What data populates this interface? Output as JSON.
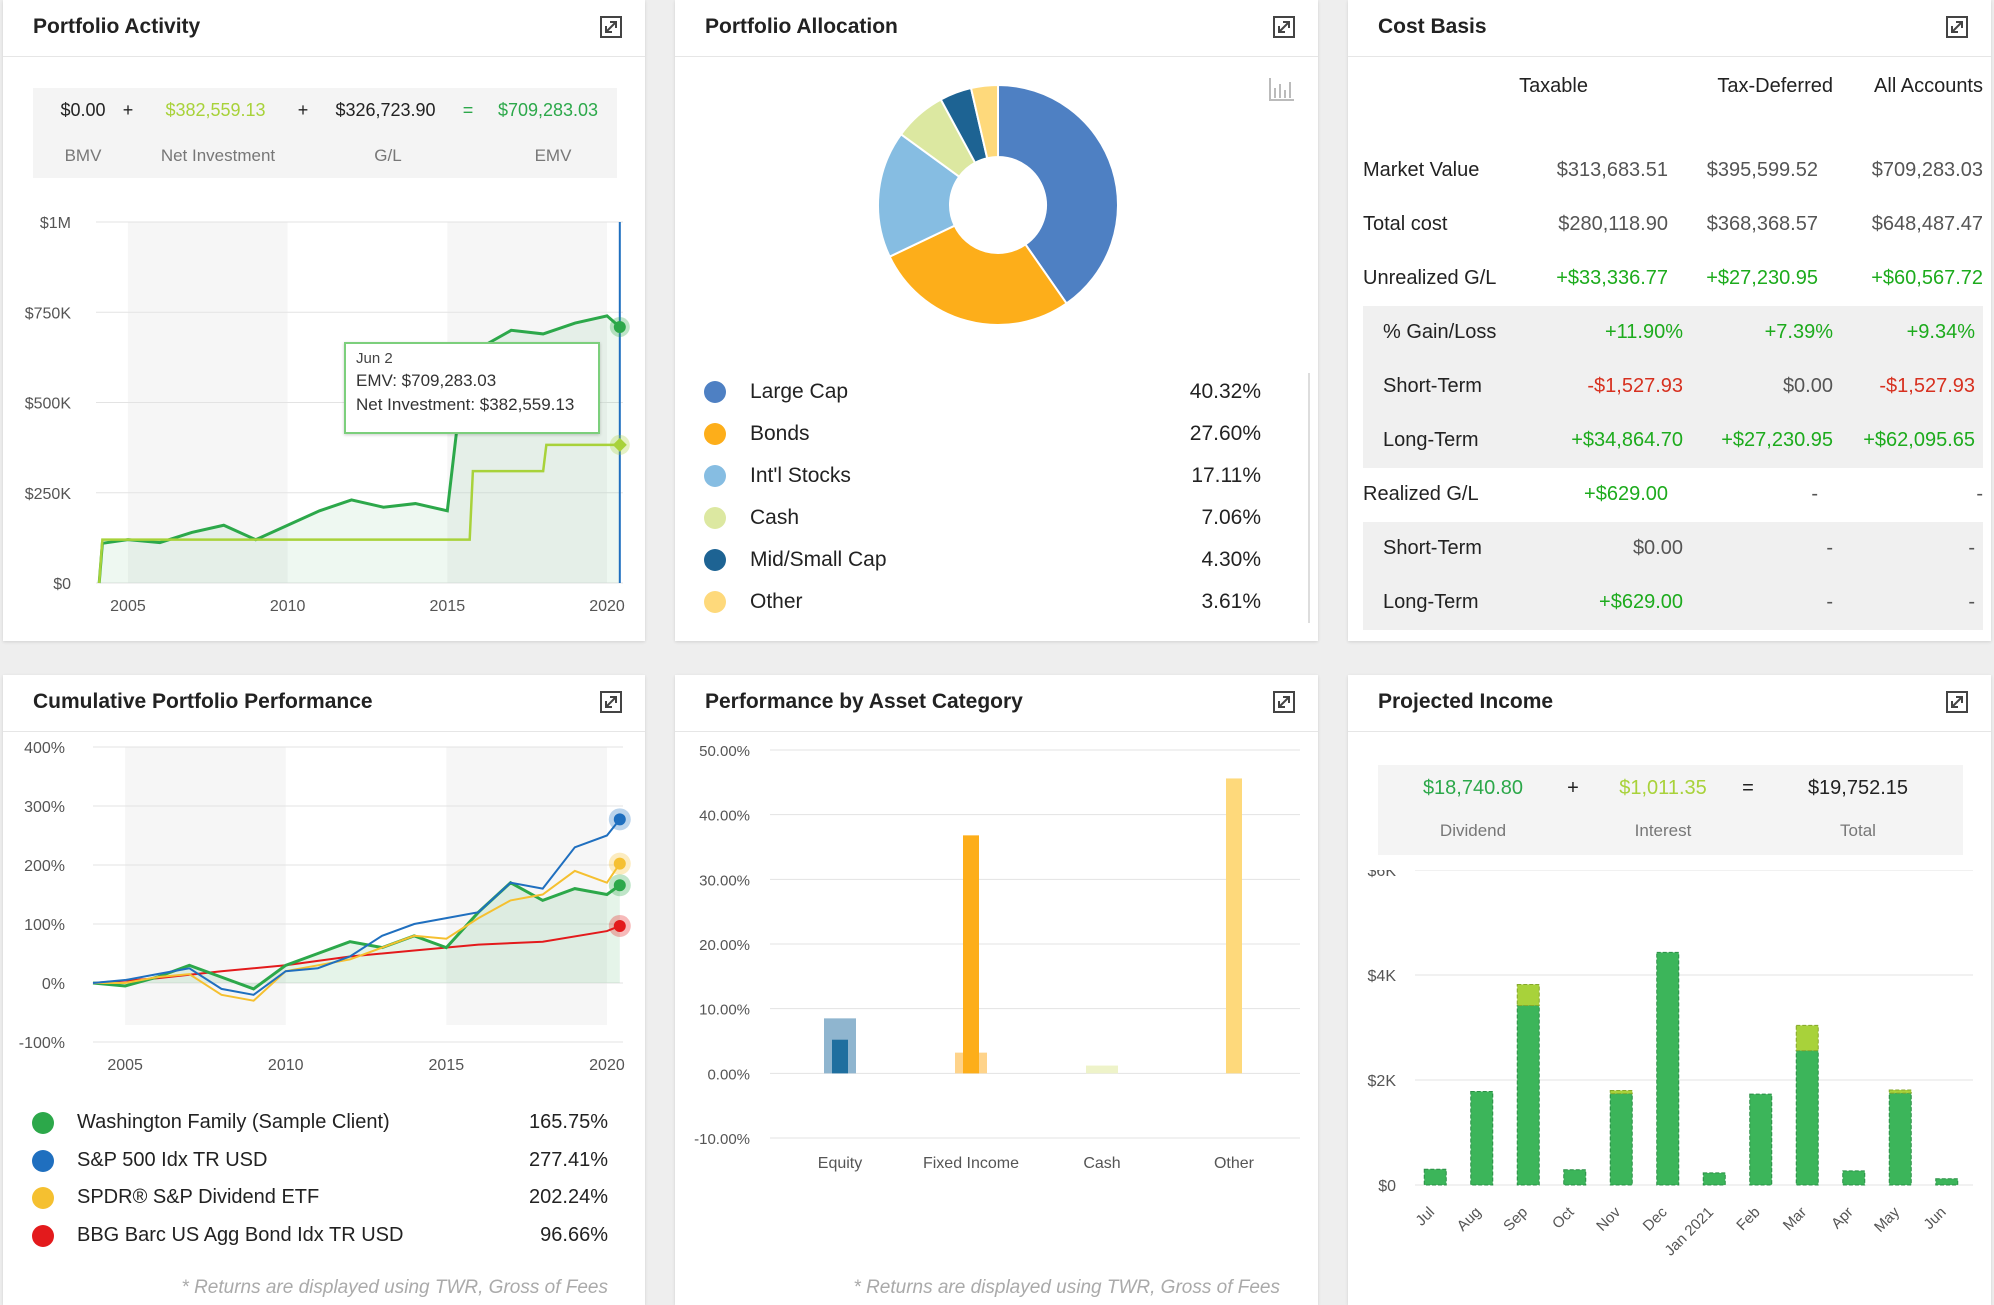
{
  "colors": {
    "green": "#2ca84a",
    "lime": "#a8d23a",
    "blue": "#4a7fc1",
    "orange": "#fdae1a",
    "lightblue": "#82bde1",
    "pale": "#dbe8a1",
    "navy": "#1f5d8f",
    "yellow": "#fed976",
    "red": "#e31a1c"
  },
  "activity": {
    "title": "Portfolio Activity",
    "expand_icon": "expand-icon",
    "bmv": "$0.00",
    "op1": "+",
    "net_investment": "$382,559.13",
    "op2": "+",
    "gl": "$326,723.90",
    "op3": "=",
    "emv": "$709,283.03",
    "bmv_label": "BMV",
    "net_label": "Net Investment",
    "gl_label": "G/L",
    "emv_label": "EMV",
    "tooltip": {
      "date": "Jun 2",
      "emv": "EMV: $709,283.03",
      "net": "Net Investment: $382,559.13"
    }
  },
  "allocation": {
    "title": "Portfolio Allocation",
    "chart_icon": "bar-chart-icon",
    "items": [
      {
        "label": "Large Cap",
        "pct": "40.32%",
        "color": "#4e80c3"
      },
      {
        "label": "Bonds",
        "pct": "27.60%",
        "color": "#fdae1a"
      },
      {
        "label": "Int'l Stocks",
        "pct": "17.11%",
        "color": "#86bde2"
      },
      {
        "label": "Cash",
        "pct": "7.06%",
        "color": "#dce8a1"
      },
      {
        "label": "Mid/Small Cap",
        "pct": "4.30%",
        "color": "#1d6393"
      },
      {
        "label": "Other",
        "pct": "3.61%",
        "color": "#fed97b"
      }
    ]
  },
  "cost_basis": {
    "title": "Cost Basis",
    "headers": [
      "Taxable",
      "Tax-Deferred",
      "All Accounts"
    ],
    "rows": [
      {
        "label": "Market Value",
        "values": [
          "$313,683.51",
          "$395,599.52",
          "$709,283.03"
        ],
        "tone": [
          "gray",
          "gray",
          "gray"
        ],
        "indent": false,
        "shade": false
      },
      {
        "label": "Total cost",
        "values": [
          "$280,118.90",
          "$368,368.57",
          "$648,487.47"
        ],
        "tone": [
          "gray",
          "gray",
          "gray"
        ],
        "indent": false,
        "shade": false
      },
      {
        "label": "Unrealized G/L",
        "values": [
          "+$33,336.77",
          "+$27,230.95",
          "+$60,567.72"
        ],
        "tone": [
          "green",
          "green",
          "green"
        ],
        "indent": false,
        "shade": false
      },
      {
        "label": "% Gain/Loss",
        "values": [
          "+11.90%",
          "+7.39%",
          "+9.34%"
        ],
        "tone": [
          "green",
          "green",
          "green"
        ],
        "indent": true,
        "shade": true
      },
      {
        "label": "Short-Term",
        "values": [
          "-$1,527.93",
          "$0.00",
          "-$1,527.93"
        ],
        "tone": [
          "red",
          "gray",
          "red"
        ],
        "indent": true,
        "shade": true
      },
      {
        "label": "Long-Term",
        "values": [
          "+$34,864.70",
          "+$27,230.95",
          "+$62,095.65"
        ],
        "tone": [
          "green",
          "green",
          "green"
        ],
        "indent": true,
        "shade": true
      },
      {
        "label": "Realized G/L",
        "values": [
          "+$629.00",
          "-",
          "-"
        ],
        "tone": [
          "green",
          "gray",
          "gray"
        ],
        "indent": false,
        "shade": false
      },
      {
        "label": "Short-Term",
        "values": [
          "$0.00",
          "-",
          "-"
        ],
        "tone": [
          "gray",
          "gray",
          "gray"
        ],
        "indent": true,
        "shade": true
      },
      {
        "label": "Long-Term",
        "values": [
          "+$629.00",
          "-",
          "-"
        ],
        "tone": [
          "green",
          "gray",
          "gray"
        ],
        "indent": true,
        "shade": true
      }
    ]
  },
  "cumulative": {
    "title": "Cumulative Portfolio Performance",
    "legend": [
      {
        "label": "Washington Family (Sample Client)",
        "value": "165.75%",
        "color": "#2ca84a"
      },
      {
        "label": "S&P 500 Idx TR USD",
        "value": "277.41%",
        "color": "#1f6fbf"
      },
      {
        "label": "SPDR® S&P Dividend ETF",
        "value": "202.24%",
        "color": "#f5c030"
      },
      {
        "label": "BBG Barc US Agg Bond Idx TR USD",
        "value": "96.66%",
        "color": "#e31a1c"
      }
    ],
    "footnote": "* Returns are displayed using TWR, Gross of Fees"
  },
  "by_category": {
    "title": "Performance by Asset Category",
    "footnote": "* Returns are displayed using TWR, Gross of Fees"
  },
  "projected": {
    "title": "Projected Income",
    "dividend": "$18,740.80",
    "op1": "+",
    "interest": "$1,011.35",
    "op2": "=",
    "total": "$19,752.15",
    "dividend_label": "Dividend",
    "interest_label": "Interest",
    "total_label": "Total"
  },
  "chart_data": [
    {
      "type": "line",
      "x_ticks": [
        "2005",
        "2010",
        "2015",
        "2020"
      ],
      "y_ticks": [
        "$0",
        "$250K",
        "$500K",
        "$750K",
        "$1M"
      ],
      "ylim": [
        0,
        1000000
      ],
      "xlim": [
        2004,
        2020.5
      ],
      "series": [
        {
          "name": "EMV",
          "x": [
            2004.1,
            2004.2,
            2005,
            2006,
            2007,
            2008,
            2009,
            2010,
            2011,
            2012,
            2013,
            2014,
            2015,
            2015.5,
            2016,
            2017,
            2018,
            2019,
            2020,
            2020.4
          ],
          "values": [
            0,
            110000,
            120000,
            112000,
            140000,
            160000,
            120000,
            160000,
            200000,
            230000,
            210000,
            220000,
            200000,
            580000,
            650000,
            700000,
            690000,
            720000,
            740000,
            709283
          ]
        },
        {
          "name": "Net Investment",
          "x": [
            2004.1,
            2004.2,
            2005,
            2015.7,
            2015.8,
            2016,
            2018,
            2018.1,
            2020.4
          ],
          "values": [
            0,
            120000,
            120000,
            120000,
            310000,
            310000,
            310000,
            382559,
            382559
          ]
        }
      ]
    },
    {
      "type": "pie",
      "labels": [
        "Large Cap",
        "Bonds",
        "Int'l Stocks",
        "Cash",
        "Mid/Small Cap",
        "Other"
      ],
      "values": [
        40.32,
        27.6,
        17.11,
        7.06,
        4.3,
        3.61
      ]
    },
    {
      "type": "line",
      "x_ticks": [
        "2005",
        "2010",
        "2015",
        "2020"
      ],
      "y_ticks": [
        "-100%",
        "0%",
        "100%",
        "200%",
        "300%",
        "400%"
      ],
      "ylim": [
        -100,
        400
      ],
      "xlim": [
        2004,
        2020.5
      ],
      "series": [
        {
          "name": "Washington Family (Sample Client)",
          "x": [
            2004,
            2005,
            2006,
            2007,
            2008,
            2009,
            2010,
            2011,
            2012,
            2013,
            2014,
            2015,
            2016,
            2017,
            2018,
            2019,
            2020,
            2020.4
          ],
          "values": [
            0,
            -5,
            10,
            30,
            10,
            -10,
            30,
            50,
            70,
            60,
            80,
            60,
            120,
            170,
            140,
            160,
            150,
            165.75
          ]
        },
        {
          "name": "S&P 500 Idx TR USD",
          "x": [
            2004,
            2005,
            2006,
            2007,
            2008,
            2009,
            2010,
            2011,
            2012,
            2013,
            2014,
            2015,
            2016,
            2017,
            2018,
            2019,
            2020,
            2020.4
          ],
          "values": [
            0,
            5,
            15,
            25,
            -10,
            -20,
            20,
            25,
            45,
            80,
            100,
            110,
            120,
            170,
            160,
            230,
            250,
            277.41
          ]
        },
        {
          "name": "SPDR® S&P Dividend ETF",
          "x": [
            2004,
            2005,
            2006,
            2007,
            2008,
            2009,
            2010,
            2011,
            2012,
            2013,
            2014,
            2015,
            2016,
            2017,
            2018,
            2019,
            2020,
            2020.4
          ],
          "values": [
            0,
            0,
            10,
            15,
            -20,
            -30,
            20,
            30,
            40,
            60,
            80,
            75,
            110,
            140,
            150,
            190,
            170,
            202.24
          ]
        },
        {
          "name": "BBG Barc US Agg Bond Idx TR USD",
          "x": [
            2004,
            2006,
            2008,
            2010,
            2012,
            2014,
            2016,
            2018,
            2020,
            2020.4
          ],
          "values": [
            0,
            8,
            20,
            30,
            45,
            55,
            65,
            70,
            88,
            96.66
          ]
        }
      ]
    },
    {
      "type": "bar",
      "categories": [
        "Equity",
        "Fixed Income",
        "Cash",
        "Other"
      ],
      "y_ticks": [
        "-10.00%",
        "0.00%",
        "10.00%",
        "20.00%",
        "30.00%",
        "40.00%",
        "50.00%"
      ],
      "ylim": [
        -10,
        50
      ],
      "series": [
        {
          "values": [
            8.5,
            3.2,
            1.2,
            0
          ]
        },
        {
          "values": [
            5.2,
            36.8,
            0,
            45.6
          ]
        }
      ]
    },
    {
      "type": "bar",
      "categories": [
        "Jul",
        "Aug",
        "Sep",
        "Oct",
        "Nov",
        "Dec",
        "Jan 2021",
        "Feb",
        "Mar",
        "Apr",
        "May",
        "Jun"
      ],
      "y_ticks": [
        "$0",
        "$2K",
        "$4K",
        "$6K"
      ],
      "ylim": [
        0,
        6000
      ],
      "series": [
        {
          "name": "Dividend",
          "values": [
            300,
            1780,
            3420,
            290,
            1740,
            4430,
            230,
            1730,
            2560,
            270,
            1750,
            120
          ]
        },
        {
          "name": "Interest",
          "values": [
            0,
            0,
            400,
            0,
            60,
            0,
            0,
            0,
            480,
            0,
            60,
            0
          ]
        }
      ]
    }
  ]
}
